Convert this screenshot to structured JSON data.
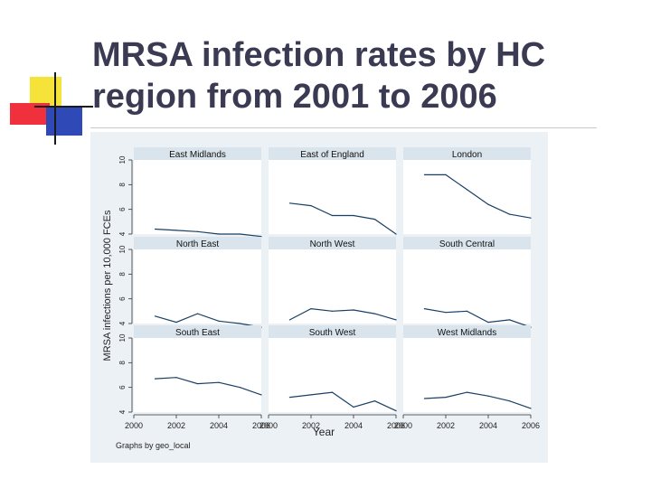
{
  "slide": {
    "title": "MRSA infection rates by HC region from 2001 to 2006"
  },
  "colors": {
    "title": "#3a3a52",
    "figure_background": "#ebf1f5",
    "panel_background": "#ffffff",
    "strip_background": "#d9e4ec",
    "line": "#1a3f66",
    "deco_yellow": "#f6e33a",
    "deco_red": "#f0303c",
    "deco_blue": "#2f49b6"
  },
  "chart_data": {
    "type": "line",
    "layout": "3x3 small multiples",
    "ylabel": "MRSA infections per 10,000 FCEs",
    "xlabel": "Year",
    "note": "Graphs by geo_local",
    "xlim": [
      2000,
      2006
    ],
    "ylim": [
      4,
      10
    ],
    "xticks": [
      2000,
      2002,
      2004,
      2006
    ],
    "yticks": [
      4,
      6,
      8,
      10
    ],
    "x": [
      2001,
      2002,
      2003,
      2004,
      2005,
      2006
    ],
    "panels": [
      {
        "name": "East Midlands",
        "values": [
          4.4,
          4.3,
          4.2,
          4.0,
          4.0,
          3.8
        ]
      },
      {
        "name": "East of England",
        "values": [
          6.5,
          6.3,
          5.5,
          5.5,
          5.2,
          4.0
        ]
      },
      {
        "name": "London",
        "values": [
          8.8,
          8.8,
          7.6,
          6.4,
          5.6,
          5.3
        ]
      },
      {
        "name": "North East",
        "values": [
          4.6,
          4.1,
          4.8,
          4.2,
          4.0,
          3.7
        ]
      },
      {
        "name": "North West",
        "values": [
          4.3,
          5.2,
          5.0,
          5.1,
          4.8,
          4.3
        ]
      },
      {
        "name": "South Central",
        "values": [
          5.2,
          4.9,
          5.0,
          4.1,
          4.3,
          3.7
        ]
      },
      {
        "name": "South East",
        "values": [
          6.7,
          6.8,
          6.3,
          6.4,
          6.0,
          5.4
        ]
      },
      {
        "name": "South West",
        "values": [
          5.2,
          5.4,
          5.6,
          4.4,
          4.9,
          4.1
        ]
      },
      {
        "name": "West Midlands",
        "values": [
          5.1,
          5.2,
          5.6,
          5.3,
          4.9,
          4.3
        ]
      }
    ]
  }
}
